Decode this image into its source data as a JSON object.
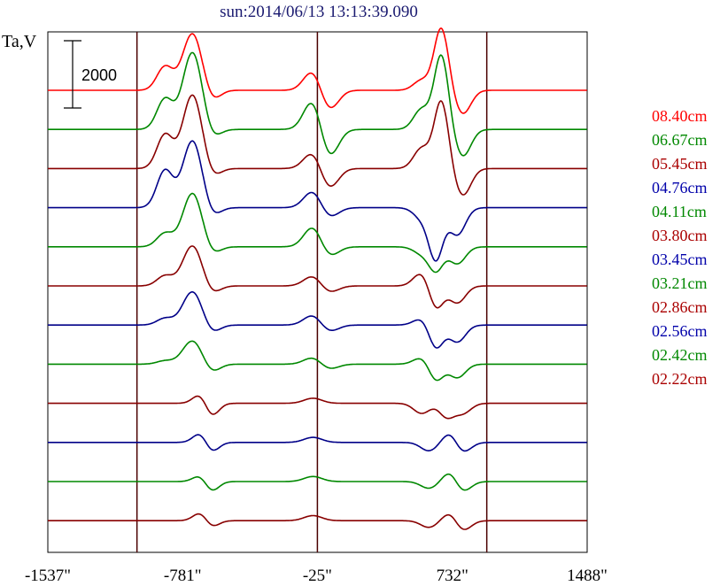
{
  "chart_data": {
    "type": "line",
    "title": "sun:2014/06/13 13:13:39.090",
    "ylabel": "Ta,V",
    "xlim": [
      -1537,
      1488
    ],
    "x_ticks": [
      "-1537\"",
      "-781\"",
      "-25\"",
      "732\"",
      "1488\""
    ],
    "x_tick_values": [
      -1537,
      -781,
      -25,
      732,
      1488
    ],
    "vertical_lines": [
      -1037,
      -25,
      925
    ],
    "scale_bar": {
      "label": "2000",
      "value": 2000
    },
    "legend_placement": "right",
    "series": [
      {
        "name": "08.40cm",
        "color": "#ff0000",
        "features": [
          [
            -880,
            700,
            45
          ],
          [
            -725,
            1700,
            55
          ],
          [
            -620,
            -350,
            45
          ],
          [
            -50,
            600,
            50
          ],
          [
            40,
            -600,
            50
          ],
          [
            560,
            300,
            45
          ],
          [
            670,
            1850,
            40
          ],
          [
            790,
            -700,
            45
          ]
        ]
      },
      {
        "name": "06.67cm",
        "color": "#008800",
        "features": [
          [
            -880,
            900,
            45
          ],
          [
            -725,
            2300,
            55
          ],
          [
            -620,
            -300,
            45
          ],
          [
            -50,
            900,
            50
          ],
          [
            40,
            -850,
            50
          ],
          [
            560,
            600,
            45
          ],
          [
            670,
            2200,
            40
          ],
          [
            790,
            -800,
            45
          ]
        ]
      },
      {
        "name": "05.45cm",
        "color": "#880000",
        "features": [
          [
            -880,
            1000,
            45
          ],
          [
            -725,
            2200,
            55
          ],
          [
            -620,
            -300,
            45
          ],
          [
            -50,
            500,
            50
          ],
          [
            40,
            -600,
            50
          ],
          [
            560,
            600,
            45
          ],
          [
            670,
            2000,
            40
          ],
          [
            790,
            -800,
            45
          ]
        ]
      },
      {
        "name": "04.76cm",
        "color": "#000088",
        "features": [
          [
            -880,
            1100,
            45
          ],
          [
            -725,
            2000,
            55
          ],
          [
            -620,
            -300,
            45
          ],
          [
            -50,
            500,
            50
          ],
          [
            40,
            -300,
            50
          ],
          [
            560,
            -300,
            45
          ],
          [
            640,
            -1500,
            40
          ],
          [
            760,
            -800,
            45
          ]
        ]
      },
      {
        "name": "04.11cm",
        "color": "#008800",
        "features": [
          [
            -880,
            400,
            45
          ],
          [
            -725,
            1600,
            55
          ],
          [
            -620,
            -250,
            45
          ],
          [
            -50,
            600,
            50
          ],
          [
            40,
            -300,
            50
          ],
          [
            560,
            -200,
            45
          ],
          [
            640,
            -700,
            40
          ],
          [
            760,
            -500,
            45
          ]
        ]
      },
      {
        "name": "03.80cm",
        "color": "#880000",
        "features": [
          [
            -880,
            300,
            45
          ],
          [
            -725,
            1200,
            55
          ],
          [
            -620,
            -250,
            45
          ],
          [
            -50,
            300,
            50
          ],
          [
            40,
            -200,
            50
          ],
          [
            560,
            400,
            45
          ],
          [
            640,
            -700,
            40
          ],
          [
            760,
            -500,
            45
          ]
        ]
      },
      {
        "name": "03.45cm",
        "color": "#000088",
        "features": [
          [
            -880,
            200,
            45
          ],
          [
            -725,
            1000,
            55
          ],
          [
            -620,
            -250,
            45
          ],
          [
            -50,
            300,
            50
          ],
          [
            40,
            -200,
            50
          ],
          [
            560,
            200,
            45
          ],
          [
            640,
            -700,
            40
          ],
          [
            760,
            -500,
            45
          ]
        ]
      },
      {
        "name": "03.21cm",
        "color": "#008800",
        "features": [
          [
            -880,
            100,
            45
          ],
          [
            -725,
            700,
            55
          ],
          [
            -620,
            -250,
            45
          ],
          [
            -50,
            200,
            50
          ],
          [
            40,
            -150,
            50
          ],
          [
            560,
            200,
            45
          ],
          [
            640,
            -500,
            40
          ],
          [
            760,
            -400,
            45
          ]
        ]
      },
      {
        "name": "02.86cm",
        "color": "#880000",
        "features": [
          [
            -680,
            300,
            40
          ],
          [
            -620,
            -400,
            40
          ],
          [
            -50,
            150,
            50
          ],
          [
            560,
            -300,
            45
          ],
          [
            700,
            -400,
            40
          ],
          [
            790,
            -300,
            45
          ]
        ]
      },
      {
        "name": "02.56cm",
        "color": "#000088",
        "features": [
          [
            -680,
            300,
            40
          ],
          [
            -620,
            -300,
            40
          ],
          [
            -50,
            150,
            50
          ],
          [
            600,
            -250,
            45
          ],
          [
            720,
            300,
            40
          ],
          [
            790,
            -300,
            45
          ]
        ]
      },
      {
        "name": "02.42cm",
        "color": "#008800",
        "features": [
          [
            -680,
            200,
            40
          ],
          [
            -620,
            -300,
            40
          ],
          [
            -50,
            150,
            50
          ],
          [
            600,
            -200,
            45
          ],
          [
            720,
            300,
            40
          ],
          [
            790,
            -300,
            45
          ]
        ]
      },
      {
        "name": "02.22cm",
        "color": "#880000",
        "features": [
          [
            -680,
            250,
            40
          ],
          [
            -620,
            -200,
            40
          ],
          [
            -50,
            150,
            50
          ],
          [
            600,
            -200,
            45
          ],
          [
            720,
            250,
            40
          ],
          [
            790,
            -300,
            45
          ]
        ]
      }
    ]
  }
}
